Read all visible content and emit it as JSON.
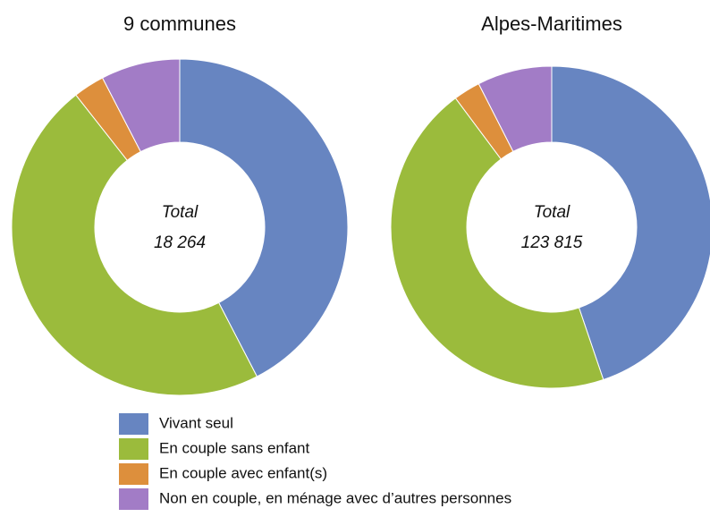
{
  "chart_data": [
    {
      "type": "pie",
      "title": "9 communes",
      "center_label": "Total",
      "center_value": "18 264",
      "values": [
        42.4,
        47.0,
        3.0,
        7.6
      ]
    },
    {
      "type": "pie",
      "title": "Alpes-Maritimes",
      "center_label": "Total",
      "center_value": "123 815",
      "values": [
        44.8,
        45.0,
        2.7,
        7.5
      ]
    }
  ],
  "legend": {
    "categories": [
      "Vivant seul",
      "En couple sans enfant",
      "En couple avec enfant(s)",
      "Non en couple, en ménage avec d’autres personnes"
    ],
    "colors": [
      "#6785c1",
      "#9bbb3c",
      "#dd8f3c",
      "#a27cc6"
    ]
  }
}
